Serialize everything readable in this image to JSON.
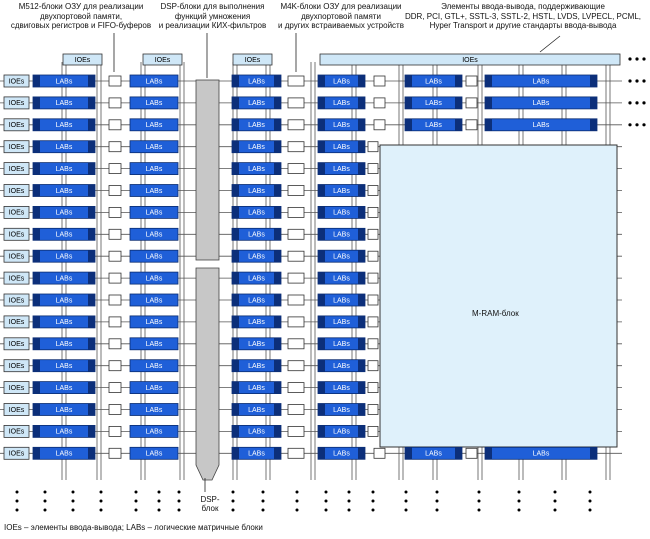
{
  "annotations": {
    "m512": "M512-блоки ОЗУ для реализации\nдвухпортовой памяти,\nсдвиговых регистров и FIFO-буферов",
    "dsp": "DSP-блоки для выполнения\nфункций умножения\nи реализации КИХ-фильтров",
    "m4k": "M4K-блоки ОЗУ для реализации\nдвухпортовой памяти\nи других встраиваемых устройств",
    "ioe": "Элементы ввода-вывода, поддерживающие\nDDR, PCI, GTL+, SSTL-3, SSTL-2, HSTL, LVDS, LVPECL, PCML,\nHyper Transport и другие стандарты ввода-вывода"
  },
  "block_labels": {
    "ioe": "IOEs",
    "lab": "LABs",
    "mram": "M-RAM-блок",
    "dsp": "DSP-\nблок"
  },
  "legend": "IOEs – элементы ввода-вывода; LABs – логические матричные блоки",
  "colors": {
    "lab_blue": "#1f5fd8",
    "lab_dark": "#0c2f7a",
    "ioe_fill": "#cfe7f7",
    "mram_fill": "#dff1fb",
    "dsp_fill": "#c7c7c7",
    "line": "#555555"
  }
}
